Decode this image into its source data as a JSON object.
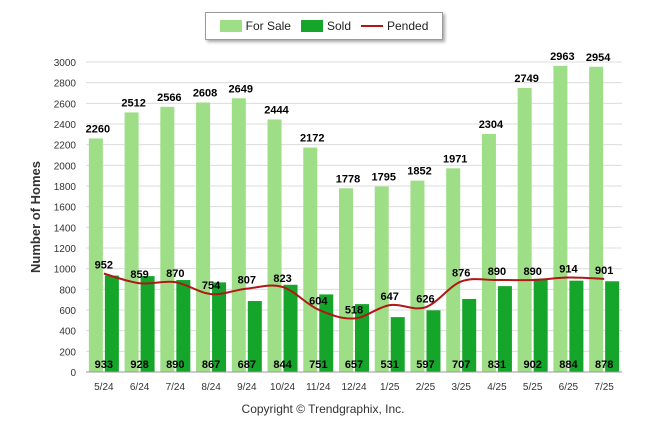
{
  "chart_data": {
    "type": "bar",
    "categories": [
      "5/24",
      "6/24",
      "7/24",
      "8/24",
      "9/24",
      "10/24",
      "11/24",
      "12/24",
      "1/25",
      "2/25",
      "3/25",
      "4/25",
      "5/25",
      "6/25",
      "7/25"
    ],
    "series": [
      {
        "name": "For Sale",
        "type": "bar",
        "color": "#9ede86",
        "values": [
          2260,
          2512,
          2566,
          2608,
          2649,
          2444,
          2172,
          1778,
          1795,
          1852,
          1971,
          2304,
          2749,
          2963,
          2954
        ]
      },
      {
        "name": "Sold",
        "type": "bar",
        "color": "#14a52a",
        "values": [
          933,
          928,
          890,
          867,
          687,
          844,
          751,
          657,
          531,
          597,
          707,
          831,
          902,
          884,
          878
        ]
      },
      {
        "name": "Pended",
        "type": "line",
        "color": "#b01818",
        "values": [
          952,
          859,
          870,
          754,
          807,
          823,
          604,
          518,
          647,
          626,
          876,
          890,
          890,
          914,
          901
        ]
      }
    ],
    "ylabel": "Number of Homes",
    "xlabel": "",
    "ylim": [
      0,
      3000
    ],
    "yticks": [
      0,
      200,
      400,
      600,
      800,
      1000,
      1200,
      1400,
      1600,
      1800,
      2000,
      2200,
      2400,
      2600,
      2800,
      3000
    ],
    "grid": true,
    "legend_position": "top-center"
  },
  "footer": "Copyright © Trendgraphix, Inc."
}
